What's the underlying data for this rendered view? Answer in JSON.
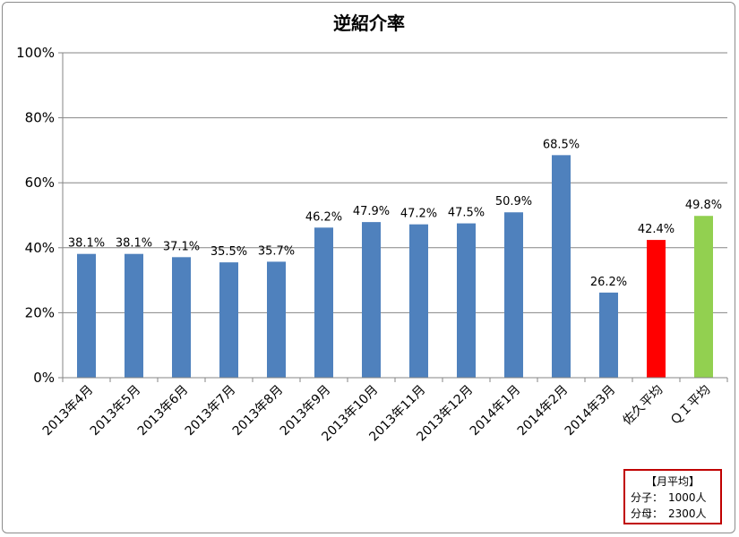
{
  "chart_data": {
    "type": "bar",
    "title": "逆紹介率",
    "categories": [
      "2013年4月",
      "2013年5月",
      "2013年6月",
      "2013年7月",
      "2013年8月",
      "2013年9月",
      "2013年10月",
      "2013年11月",
      "2013年12月",
      "2014年1月",
      "2014年2月",
      "2014年3月",
      "佐久平均",
      "ＱＩ平均"
    ],
    "values": [
      38.1,
      38.1,
      37.1,
      35.5,
      35.7,
      46.2,
      47.9,
      47.2,
      47.5,
      50.9,
      68.5,
      26.2,
      42.4,
      49.8
    ],
    "data_labels": [
      "38.1%",
      "38.1%",
      "37.1%",
      "35.5%",
      "35.7%",
      "46.2%",
      "47.9%",
      "47.2%",
      "47.5%",
      "50.9%",
      "68.5%",
      "26.2%",
      "42.4%",
      "49.8%"
    ],
    "colors": [
      "#4f81bd",
      "#4f81bd",
      "#4f81bd",
      "#4f81bd",
      "#4f81bd",
      "#4f81bd",
      "#4f81bd",
      "#4f81bd",
      "#4f81bd",
      "#4f81bd",
      "#4f81bd",
      "#4f81bd",
      "#ff0000",
      "#92d050"
    ],
    "y_ticks": [
      "0%",
      "20%",
      "40%",
      "60%",
      "80%",
      "100%"
    ],
    "ylim": [
      0,
      100
    ],
    "grid": true,
    "xlabel": "",
    "ylabel": ""
  },
  "note": {
    "title": "【月平均】",
    "numerator": "分子：　1000人",
    "denominator": "分母：　2300人"
  }
}
